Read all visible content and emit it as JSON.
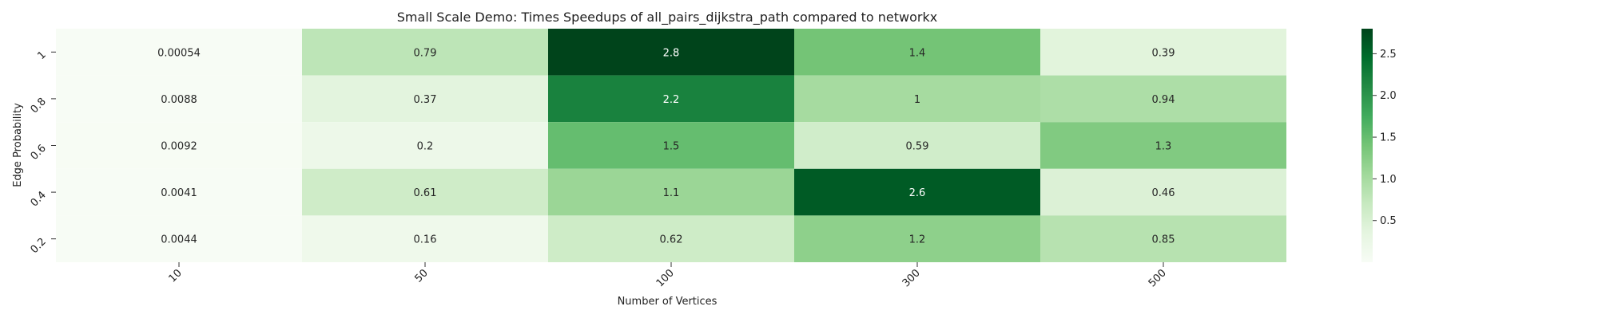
{
  "chart_data": {
    "type": "heatmap",
    "title": "Small Scale Demo: Times Speedups of all_pairs_dijkstra_path compared to networkx",
    "xlabel": "Number of Vertices",
    "ylabel": "Edge Probability",
    "x_categories": [
      "10",
      "50",
      "100",
      "300",
      "500"
    ],
    "y_categories": [
      "1",
      "0.8",
      "0.6",
      "0.4",
      "0.2"
    ],
    "values": [
      [
        0.00054,
        0.79,
        2.8,
        1.4,
        0.39
      ],
      [
        0.0088,
        0.37,
        2.2,
        1,
        0.94
      ],
      [
        0.0092,
        0.2,
        1.5,
        0.59,
        1.3
      ],
      [
        0.0041,
        0.61,
        1.1,
        2.6,
        0.46
      ],
      [
        0.0044,
        0.16,
        0.62,
        1.2,
        0.85
      ]
    ],
    "labels": [
      [
        "0.00054",
        "0.79",
        "2.8",
        "1.4",
        "0.39"
      ],
      [
        "0.0088",
        "0.37",
        "2.2",
        "1",
        "0.94"
      ],
      [
        "0.0092",
        "0.2",
        "1.5",
        "0.59",
        "1.3"
      ],
      [
        "0.0041",
        "0.61",
        "1.1",
        "2.6",
        "0.46"
      ],
      [
        "0.0044",
        "0.16",
        "0.62",
        "1.2",
        "0.85"
      ]
    ],
    "colorbar": {
      "range": [
        0.00054,
        2.8
      ],
      "ticks": [
        0.5,
        1.0,
        1.5,
        2.0,
        2.5
      ],
      "tick_labels": [
        "0.5",
        "1.0",
        "1.5",
        "2.0",
        "2.5"
      ]
    },
    "colormap": [
      "#f7fcf5",
      "#e5f5e0",
      "#c7e9c0",
      "#a1d99b",
      "#74c476",
      "#41ab5d",
      "#238b45",
      "#006d2c",
      "#00441b"
    ]
  }
}
